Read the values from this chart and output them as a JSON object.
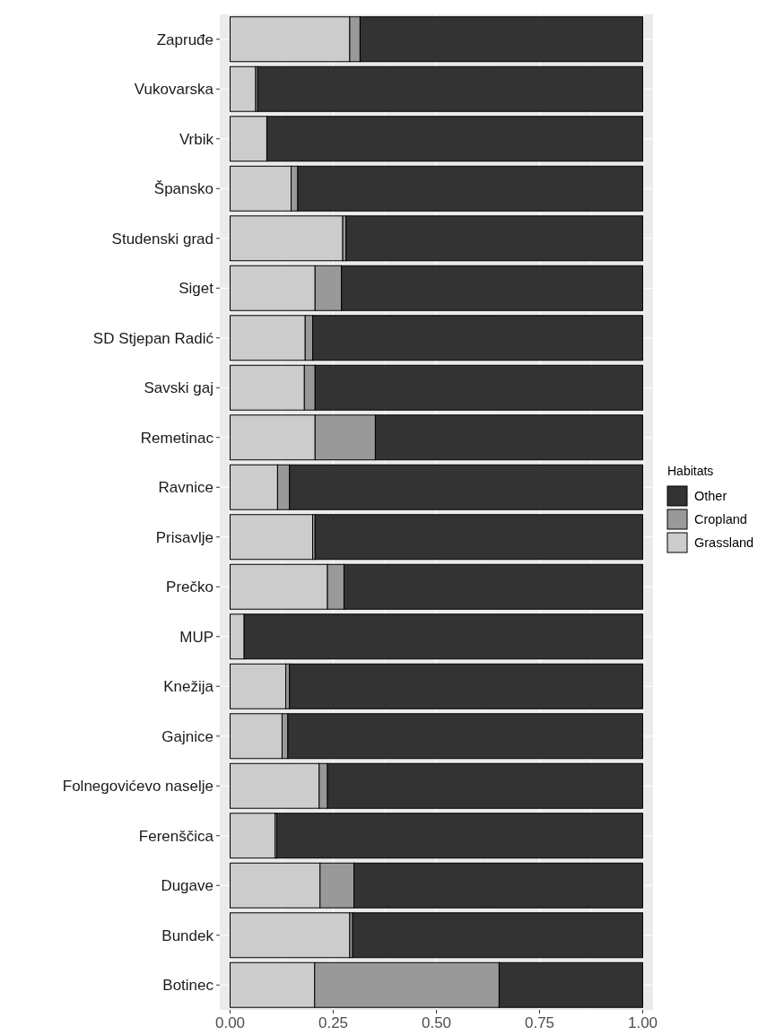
{
  "chart_data": {
    "type": "bar",
    "orientation": "horizontal",
    "stacked": true,
    "categories": [
      "Zapruđe",
      "Vukovarska",
      "Vrbik",
      "Špansko",
      "Studenski grad",
      "Siget",
      "SD Stjepan Radić",
      "Savski gaj",
      "Remetinac",
      "Ravnice",
      "Prisavlje",
      "Prečko",
      "MUP",
      "Knežija",
      "Gajnice",
      "Folnegovićevo naselje",
      "Ferenščica",
      "Dugave",
      "Bundek",
      "Botinec"
    ],
    "series": [
      {
        "name": "Grassland",
        "color": "#cccccc",
        "values": [
          0.29,
          0.062,
          0.089,
          0.148,
          0.273,
          0.206,
          0.182,
          0.18,
          0.206,
          0.115,
          0.2,
          0.236,
          0.034,
          0.135,
          0.126,
          0.216,
          0.109,
          0.218,
          0.29,
          0.205
        ]
      },
      {
        "name": "Cropland",
        "color": "#999999",
        "values": [
          0.025,
          0.005,
          0,
          0.016,
          0.008,
          0.064,
          0.018,
          0.026,
          0.146,
          0.029,
          0.006,
          0.04,
          null,
          0.009,
          0.014,
          0.02,
          0.004,
          0.082,
          0.007,
          0.447
        ]
      },
      {
        "name": "Other",
        "color": "#333333",
        "values": [
          0.685,
          0.933,
          0.911,
          0.836,
          0.719,
          0.73,
          0.8,
          0.794,
          0.648,
          0.856,
          0.794,
          0.724,
          0.966,
          0.856,
          0.86,
          0.764,
          0.887,
          0.7,
          0.703,
          0.348
        ]
      }
    ],
    "xlim": [
      -0.025,
      1.025
    ],
    "xticks": [
      {
        "value": 0,
        "label": "0.00"
      },
      {
        "value": 0.25,
        "label": "0.25"
      },
      {
        "value": 0.5,
        "label": "0.50"
      },
      {
        "value": 0.75,
        "label": "0.75"
      },
      {
        "value": 1,
        "label": "1.00"
      }
    ],
    "grid": true,
    "legend": "right",
    "legend_title": "Habitats"
  }
}
